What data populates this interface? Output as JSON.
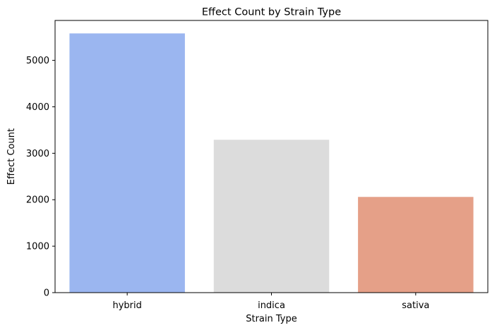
{
  "chart_data": {
    "type": "bar",
    "title": "Effect Count by Strain Type",
    "xlabel": "Strain Type",
    "ylabel": "Effect Count",
    "categories": [
      "hybrid",
      "indica",
      "sativa"
    ],
    "values": [
      5580,
      3290,
      2060
    ],
    "colors": [
      "#9bb6f0",
      "#dcdcdc",
      "#e5a088"
    ],
    "ylim": [
      0,
      5859
    ],
    "yticks": [
      0,
      1000,
      2000,
      3000,
      4000,
      5000
    ],
    "grid": false,
    "legend": "none"
  }
}
